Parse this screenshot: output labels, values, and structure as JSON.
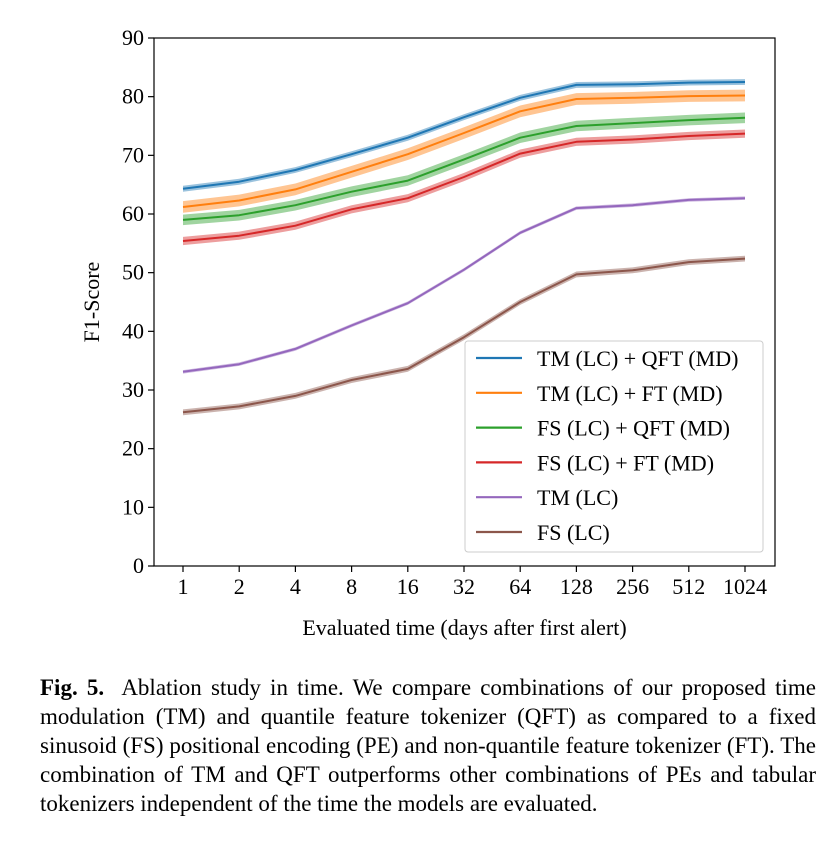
{
  "chart_data": {
    "type": "line",
    "x": [
      "1",
      "2",
      "4",
      "8",
      "16",
      "32",
      "64",
      "128",
      "256",
      "512",
      "1024"
    ],
    "xlabel": "Evaluated time (days after first alert)",
    "ylabel": "F1-Score",
    "ylim": [
      0,
      90
    ],
    "yticks": [
      0,
      10,
      20,
      30,
      40,
      50,
      60,
      70,
      80,
      90
    ],
    "grid": false,
    "legend_position": "lower-right",
    "series": [
      {
        "name": "TM (LC) + QFT (MD)",
        "color": "#1f77b4",
        "values": [
          64.3,
          65.5,
          67.5,
          70.2,
          73.0,
          76.5,
          79.8,
          82.0,
          82.1,
          82.4,
          82.5
        ],
        "band": 0.5
      },
      {
        "name": "TM (LC) + FT (MD)",
        "color": "#ff7f0e",
        "values": [
          61.2,
          62.3,
          64.2,
          67.2,
          70.2,
          73.8,
          77.5,
          79.6,
          79.8,
          80.1,
          80.2
        ],
        "band": 1.0
      },
      {
        "name": "FS (LC) + QFT (MD)",
        "color": "#2ca02c",
        "values": [
          59.0,
          59.8,
          61.5,
          63.8,
          65.7,
          69.3,
          73.0,
          75.0,
          75.5,
          76.0,
          76.4
        ],
        "band": 0.9
      },
      {
        "name": "FS (LC) + FT (MD)",
        "color": "#d62728",
        "values": [
          55.4,
          56.3,
          58.0,
          60.8,
          62.7,
          66.3,
          70.3,
          72.3,
          72.7,
          73.3,
          73.7
        ],
        "band": 0.7
      },
      {
        "name": "TM (LC)",
        "color": "#9467bd",
        "values": [
          33.1,
          34.4,
          37.0,
          41.0,
          44.8,
          50.5,
          56.8,
          61.0,
          61.5,
          62.4,
          62.7
        ],
        "band": 0.3
      },
      {
        "name": "FS (LC)",
        "color": "#8c564b",
        "values": [
          26.2,
          27.2,
          29.0,
          31.7,
          33.6,
          39.0,
          45.0,
          49.7,
          50.4,
          51.8,
          52.4
        ],
        "band": 0.5
      }
    ]
  },
  "caption": {
    "label": "Fig. 5.",
    "text": "Ablation study in time. We compare combinations of our proposed time modulation (TM) and quantile feature tokenizer (QFT) as compared to a fixed sinusoid (FS) positional encoding (PE) and non-quantile feature tokenizer (FT). The combination of TM and QFT outperforms other combinations of PEs and tabular tokenizers independent of the time the models are evaluated."
  }
}
